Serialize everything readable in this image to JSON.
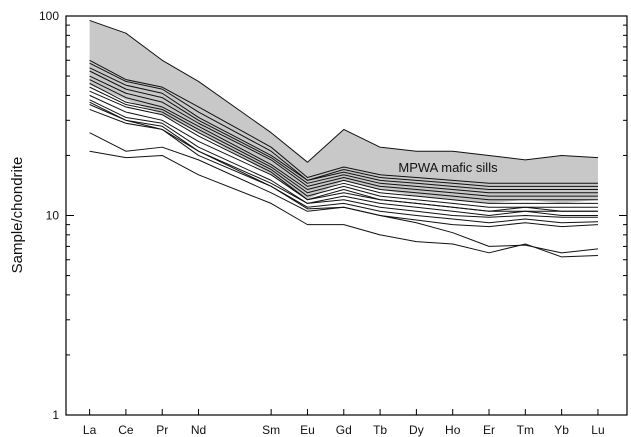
{
  "chart_data": {
    "type": "line",
    "title": "",
    "xlabel": "",
    "ylabel": "Sample/chondrite",
    "yscale": "log",
    "ylim": [
      1,
      100
    ],
    "yticks": [
      1,
      10,
      100
    ],
    "categories": [
      "La",
      "Ce",
      "Pr",
      "Nd",
      "Sm",
      "Eu",
      "Gd",
      "Tb",
      "Dy",
      "Ho",
      "Er",
      "Tm",
      "Yb",
      "Lu"
    ],
    "x": [
      57,
      58,
      59,
      60,
      62,
      63,
      64,
      65,
      66,
      67,
      68,
      69,
      70,
      71
    ],
    "annotation": "MPWA mafic sills",
    "grid": false,
    "legend": "none",
    "colors": {
      "field_fill": "#c8c8c8",
      "line": "#111111"
    },
    "field": {
      "upper": [
        95,
        82,
        60,
        47,
        26,
        18.5,
        27,
        22,
        21,
        21,
        20,
        19,
        20,
        19.5
      ],
      "lower": [
        45,
        38,
        32,
        26,
        16,
        12,
        15,
        13.5,
        12.5,
        12,
        11.5,
        12,
        11.5,
        12
      ]
    },
    "series": [
      {
        "values": [
          95,
          82,
          60,
          47,
          26,
          18.5,
          27,
          22,
          21,
          21,
          20,
          19,
          20,
          19.5
        ]
      },
      {
        "values": [
          60,
          48,
          44,
          35,
          22,
          15.5,
          17.5,
          16,
          15.5,
          15,
          14.5,
          14.5,
          14.5,
          14.5
        ]
      },
      {
        "values": [
          58,
          47,
          43,
          33,
          21,
          15,
          17,
          15.5,
          15,
          14.5,
          14,
          14,
          14,
          14
        ]
      },
      {
        "values": [
          55,
          45,
          41,
          31,
          20,
          15,
          16.5,
          15,
          14.5,
          14,
          13.5,
          13.5,
          13.5,
          13.5
        ]
      },
      {
        "values": [
          53,
          43,
          39,
          30,
          19.5,
          14.5,
          16,
          14.5,
          14,
          13.5,
          13,
          13,
          13,
          13
        ]
      },
      {
        "values": [
          50,
          41,
          37,
          29,
          19,
          14,
          15.5,
          14,
          13.5,
          13,
          12.5,
          12.5,
          12.5,
          12.5
        ]
      },
      {
        "values": [
          48,
          39,
          35,
          28,
          18,
          13.5,
          15,
          13.5,
          13,
          12.5,
          12,
          12,
          12,
          12
        ]
      },
      {
        "values": [
          46,
          37,
          34,
          27,
          17.5,
          13,
          14.5,
          13,
          12.5,
          12,
          11.5,
          11.5,
          11.5,
          11.5
        ]
      },
      {
        "values": [
          44,
          36,
          33,
          26,
          17,
          12.5,
          14,
          12.5,
          12,
          11.5,
          11,
          11,
          11,
          11
        ]
      },
      {
        "values": [
          42,
          35,
          32,
          25,
          16.5,
          12,
          13.5,
          12,
          11.5,
          11,
          10.5,
          11,
          10.5,
          10.5
        ]
      },
      {
        "values": [
          40,
          33,
          30,
          23.5,
          16,
          12,
          13,
          12,
          11.5,
          11,
          10.5,
          10.5,
          10.5,
          10.5
        ]
      },
      {
        "values": [
          38,
          31,
          29,
          22,
          15,
          11.5,
          12.5,
          11.5,
          11,
          10.5,
          10,
          10.5,
          10,
          10
        ]
      },
      {
        "values": [
          36,
          30,
          28,
          21,
          14.5,
          11.5,
          12,
          11,
          10.5,
          10,
          9.8,
          10,
          9.8,
          9.8
        ]
      },
      {
        "values": [
          34,
          29,
          27,
          20,
          14,
          11,
          11.5,
          10.5,
          10,
          9.6,
          9.2,
          9.6,
          9.2,
          9.3
        ]
      },
      {
        "values": [
          26,
          21,
          22,
          19,
          13,
          10.5,
          11,
          10,
          9.5,
          9,
          8.8,
          9.2,
          8.8,
          9
        ]
      },
      {
        "values": [
          21,
          19.5,
          20,
          16,
          11.5,
          9,
          9,
          8,
          7.4,
          7.2,
          6.5,
          7.2,
          6.2,
          6.3
        ]
      },
      {
        "values": [
          37,
          30,
          27,
          21,
          14,
          10.8,
          11,
          10,
          9.2,
          8.2,
          7,
          7.1,
          6.5,
          6.8
        ]
      }
    ]
  }
}
